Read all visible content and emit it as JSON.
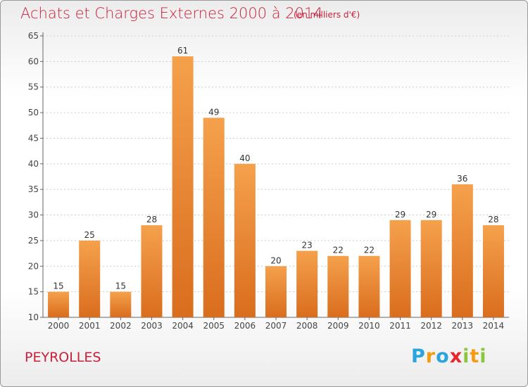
{
  "header": {
    "title": "Achats et Charges Externes 2000 à 2014",
    "subtitle": "(en milliers d'€)"
  },
  "footer": {
    "place": "PEYROLLES",
    "logo": {
      "text": "Proxiti",
      "letter_colors": [
        "#2aa4dc",
        "#f39c12",
        "#2aa4dc",
        "#e8262e",
        "#8cc63f",
        "#f39c12",
        "#8cc63f"
      ]
    }
  },
  "colors": {
    "accent": "#c8203a",
    "bar_top": "#f5a14c",
    "bar_bottom": "#d96d1e",
    "grid": "#cccccc"
  },
  "chart_data": {
    "type": "bar",
    "title": "Achats et Charges Externes 2000 à 2014",
    "subtitle": "(en milliers d'€)",
    "categories": [
      "2000",
      "2001",
      "2002",
      "2003",
      "2004",
      "2005",
      "2006",
      "2007",
      "2008",
      "2009",
      "2010",
      "2011",
      "2012",
      "2013",
      "2014"
    ],
    "values": [
      15,
      25,
      15,
      28,
      61,
      49,
      40,
      20,
      23,
      22,
      22,
      29,
      29,
      36,
      28
    ],
    "ylim": [
      10,
      65
    ],
    "yticks": [
      10,
      15,
      20,
      25,
      30,
      35,
      40,
      45,
      50,
      55,
      60,
      65
    ],
    "grid": true,
    "data_labels": true
  }
}
